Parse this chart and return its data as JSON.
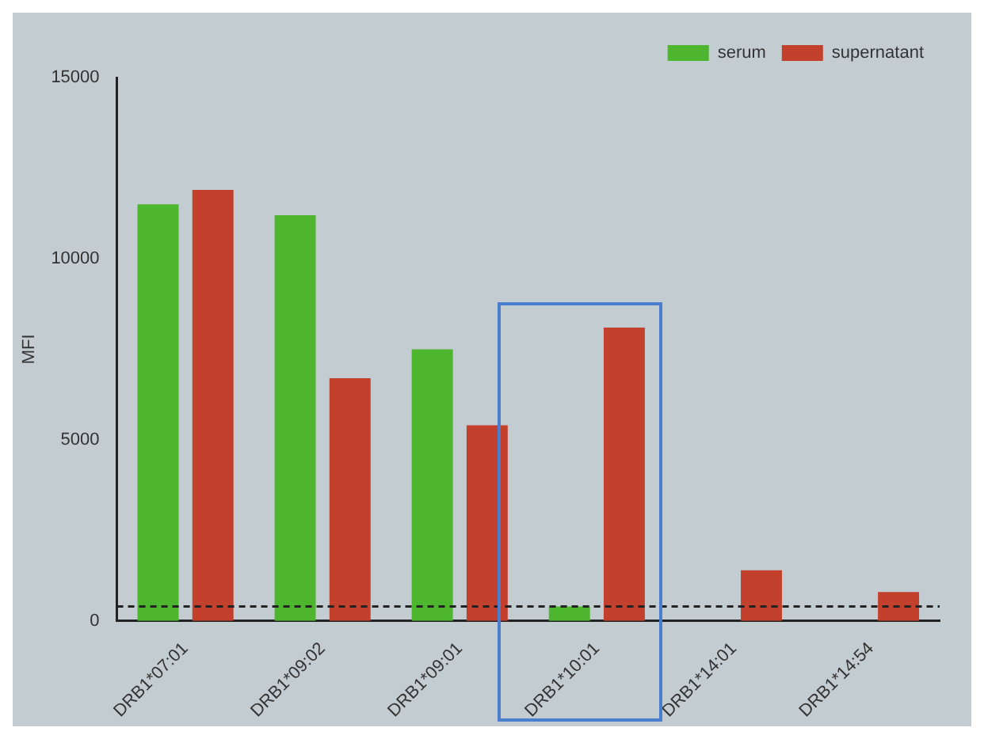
{
  "chart_data": {
    "type": "bar",
    "ylabel": "MFI",
    "categories": [
      "DRB1*07:01",
      "DRB1*09:02",
      "DRB1*09:01",
      "DRB1*10:01",
      "DRB1*14:01",
      "DRB1*14:54"
    ],
    "series": [
      {
        "name": "serum",
        "color": "#4db52e",
        "values": [
          11500,
          11200,
          7500,
          400,
          0,
          0
        ]
      },
      {
        "name": "supernatant",
        "color": "#c2402c",
        "values": [
          11900,
          6700,
          5400,
          8100,
          1400,
          800
        ]
      }
    ],
    "ylim": [
      0,
      15000
    ],
    "yticks": [
      0,
      5000,
      10000,
      15000
    ],
    "grid": false,
    "legend": "top right",
    "ref_lines": [
      {
        "axis": "y",
        "value": 400,
        "line_style": "dashed",
        "color": "#222222"
      }
    ]
  }
}
